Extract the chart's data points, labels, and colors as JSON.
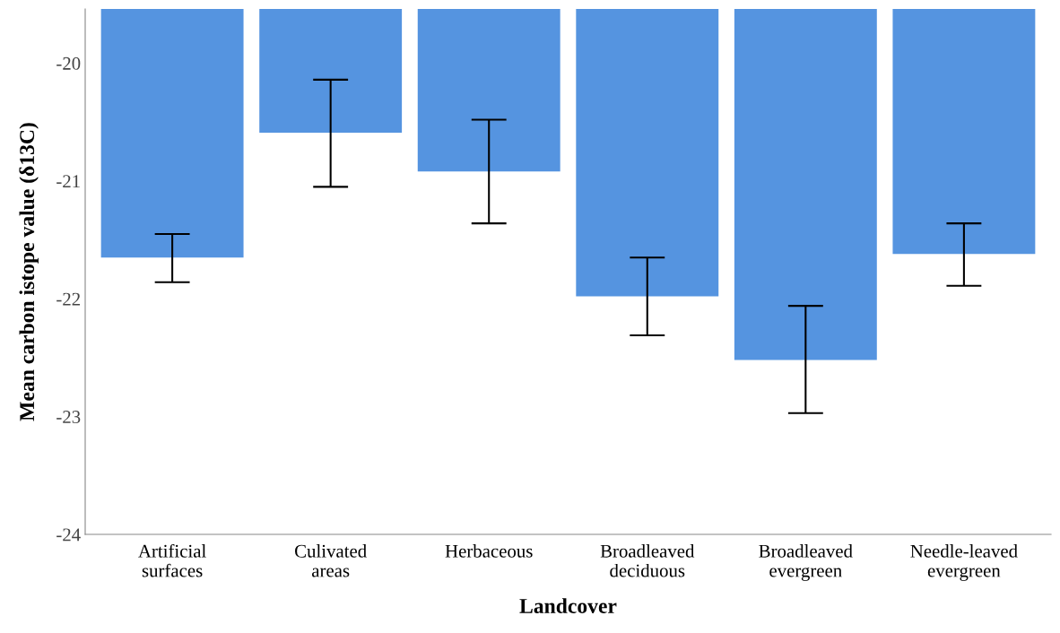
{
  "chart_data": {
    "type": "bar",
    "xlabel": "Landcover",
    "ylabel": "Mean carbon istope value (δ13C)",
    "categories": [
      "Artificial\nsurfaces",
      "Culivated\nareas",
      "Herbaceous",
      "Broadleaved\ndeciduous",
      "Broadleaved\nevergreen",
      "Needle-leaved\nevergreen"
    ],
    "values": [
      -21.65,
      -20.59,
      -20.92,
      -21.98,
      -22.52,
      -21.62
    ],
    "errors": [
      [
        -21.86,
        -21.45
      ],
      [
        -21.05,
        -20.14
      ],
      [
        -21.36,
        -20.48
      ],
      [
        -22.31,
        -21.65
      ],
      [
        -22.97,
        -22.06
      ],
      [
        -21.89,
        -21.36
      ]
    ],
    "color": "#5594e0",
    "ylim": [
      -24,
      -19.54
    ],
    "yticks": [
      -24,
      -23,
      -22,
      -21,
      -20
    ],
    "grid": false
  }
}
